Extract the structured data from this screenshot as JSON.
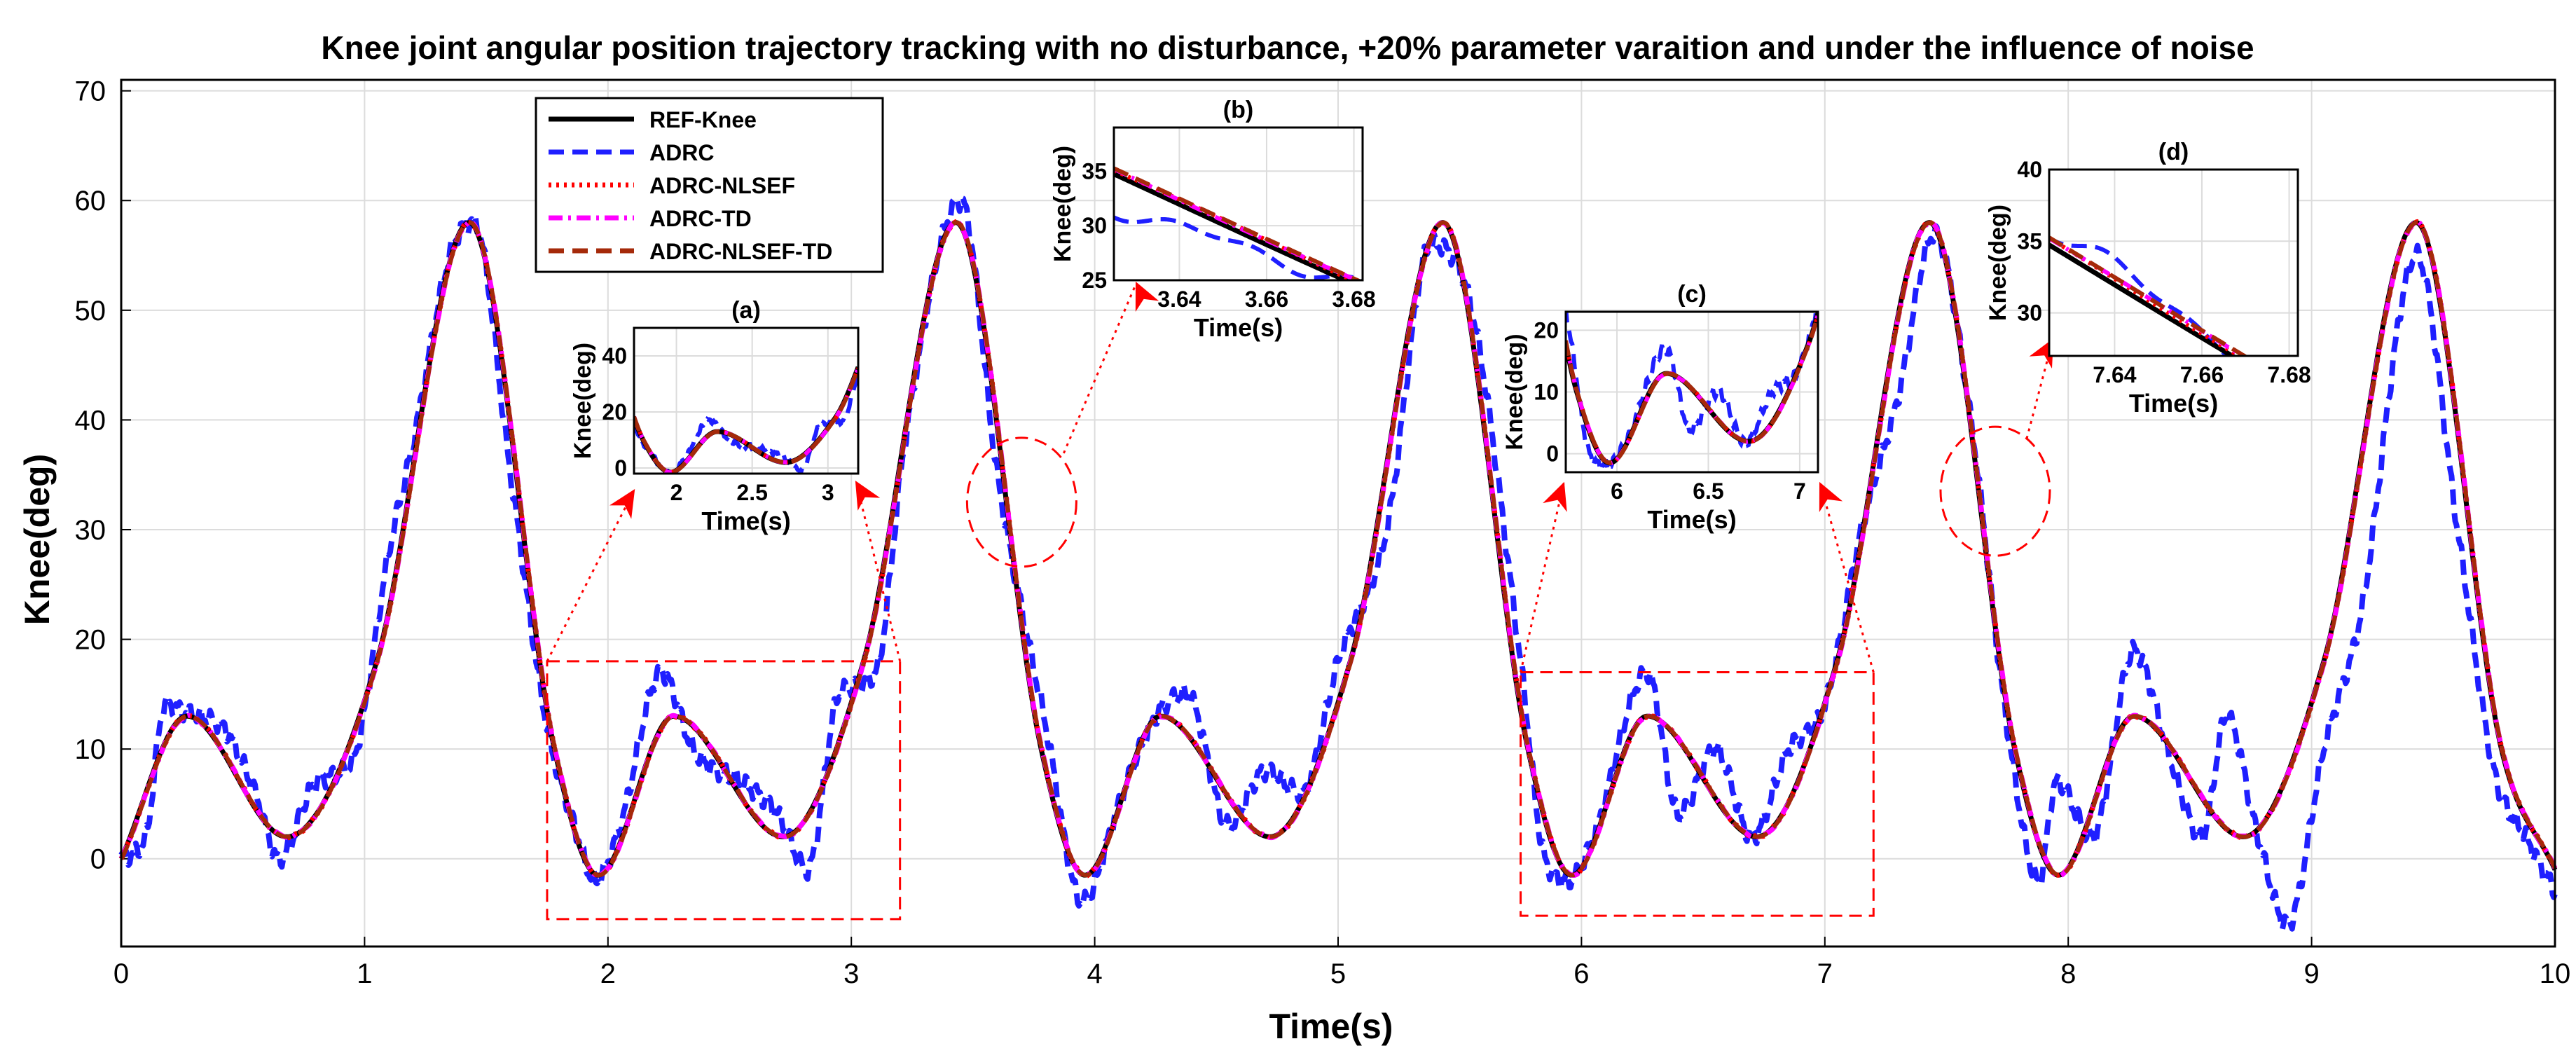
{
  "chart_data": {
    "type": "line",
    "title": "Knee joint angular position trajectory tracking with no disturbance, +20% parameter varaition and under the influence of noise",
    "xlabel": "Time(s)",
    "ylabel": "Knee(deg)",
    "xlim": [
      0,
      10
    ],
    "ylim": [
      -8,
      71
    ],
    "xticks": [
      0,
      1,
      2,
      3,
      4,
      5,
      6,
      7,
      8,
      9,
      10
    ],
    "yticks": [
      0,
      10,
      20,
      30,
      40,
      50,
      60,
      70
    ],
    "grid": true,
    "legend_position": "top-left",
    "series": [
      {
        "name": "REF-Knee",
        "color": "#000000",
        "dash": "solid"
      },
      {
        "name": "ADRC",
        "color": "#1f1fff",
        "dash": "dashed"
      },
      {
        "name": "ADRC-NLSEF",
        "color": "#ff0000",
        "dash": "dotted"
      },
      {
        "name": "ADRC-TD",
        "color": "#ff00ff",
        "dash": "dash-dot"
      },
      {
        "name": "ADRC-NLSEF-TD",
        "color": "#a52a0a",
        "dash": "dashed"
      }
    ],
    "reference_keypoints": {
      "t": [
        0,
        0.27,
        0.68,
        1.05,
        1.43,
        1.78,
        1.96,
        2.27,
        2.72,
        3.05,
        3.43,
        3.78,
        3.96,
        4.27,
        4.72,
        5.05,
        5.43,
        5.78,
        5.96,
        6.27,
        6.72,
        7.05,
        7.43,
        7.78,
        7.96,
        8.27,
        8.72,
        9.05,
        9.43,
        9.78,
        10
      ],
      "knee": [
        0,
        13,
        2,
        18,
        58,
        10,
        -1.5,
        13,
        2,
        18,
        58,
        10,
        -1.5,
        13,
        2,
        18,
        58,
        10,
        -1.5,
        13,
        2,
        18,
        58,
        10,
        -1.5,
        13,
        2,
        18,
        58,
        10,
        -1
      ]
    },
    "adrc_keypoints": {
      "t": [
        0,
        0.1,
        0.18,
        0.3,
        0.42,
        0.55,
        0.65,
        0.8,
        0.95,
        1.1,
        1.2,
        1.35,
        1.45,
        1.6,
        1.75,
        1.85,
        1.95,
        2.05,
        2.22,
        2.35,
        2.55,
        2.7,
        2.82,
        2.95,
        3.1,
        3.22,
        3.45,
        3.6,
        3.8,
        3.95,
        4.1,
        4.25,
        4.38,
        4.55,
        4.7,
        4.85,
        5.0,
        5.2,
        5.38,
        5.55,
        5.75,
        5.85,
        5.95,
        6.05,
        6.27,
        6.4,
        6.55,
        6.7,
        6.85,
        7.0,
        7.15,
        7.3,
        7.45,
        7.6,
        7.75,
        7.88,
        7.95,
        8.1,
        8.27,
        8.42,
        8.55,
        8.65,
        8.78,
        8.9,
        9.05,
        9.2,
        9.43,
        9.6,
        9.75,
        9.88,
        10
      ],
      "knee": [
        0,
        2,
        14,
        13,
        12,
        6,
        0,
        7,
        9,
        28,
        38,
        55,
        58,
        35,
        12,
        4,
        -2,
        3,
        17,
        10,
        7,
        4,
        -1,
        15,
        17,
        38,
        60,
        35,
        12,
        -4,
        5,
        13,
        15,
        3,
        8,
        6,
        18,
        30,
        56,
        50,
        18,
        0,
        -2,
        2,
        17,
        4,
        10,
        2,
        10,
        14,
        30,
        42,
        57,
        40,
        12,
        -2,
        7,
        2,
        19,
        9,
        2,
        13,
        2,
        -6,
        10,
        22,
        55,
        30,
        8,
        2,
        -3
      ]
    },
    "insets": [
      {
        "label": "(a)",
        "xlabel": "Time(s)",
        "ylabel": "Knee(deg)",
        "xlim": [
          1.72,
          3.2
        ],
        "ylim": [
          -2,
          50
        ],
        "xticks": [
          "2",
          "2.5",
          "3"
        ],
        "yticks": [
          "0",
          "20",
          "40"
        ]
      },
      {
        "label": "(b)",
        "xlabel": "Time(s)",
        "ylabel": "Knee(deg)",
        "xlim": [
          3.625,
          3.682
        ],
        "ylim": [
          25,
          39
        ],
        "xticks": [
          "3.64",
          "3.66",
          "3.68"
        ],
        "yticks": [
          "25",
          "30",
          "35"
        ]
      },
      {
        "label": "(c)",
        "xlabel": "Time(s)",
        "ylabel": "Knee(deg)",
        "xlim": [
          5.72,
          7.1
        ],
        "ylim": [
          -3,
          23
        ],
        "xticks": [
          "6",
          "6.5",
          "7"
        ],
        "yticks": [
          "0",
          "10",
          "20"
        ]
      },
      {
        "label": "(d)",
        "xlabel": "Time(s)",
        "ylabel": "Knee(deg)",
        "xlim": [
          7.625,
          7.682
        ],
        "ylim": [
          27,
          40
        ],
        "xticks": [
          "7.64",
          "7.66",
          "7.68"
        ],
        "yticks": [
          "30",
          "35",
          "40"
        ]
      }
    ]
  }
}
